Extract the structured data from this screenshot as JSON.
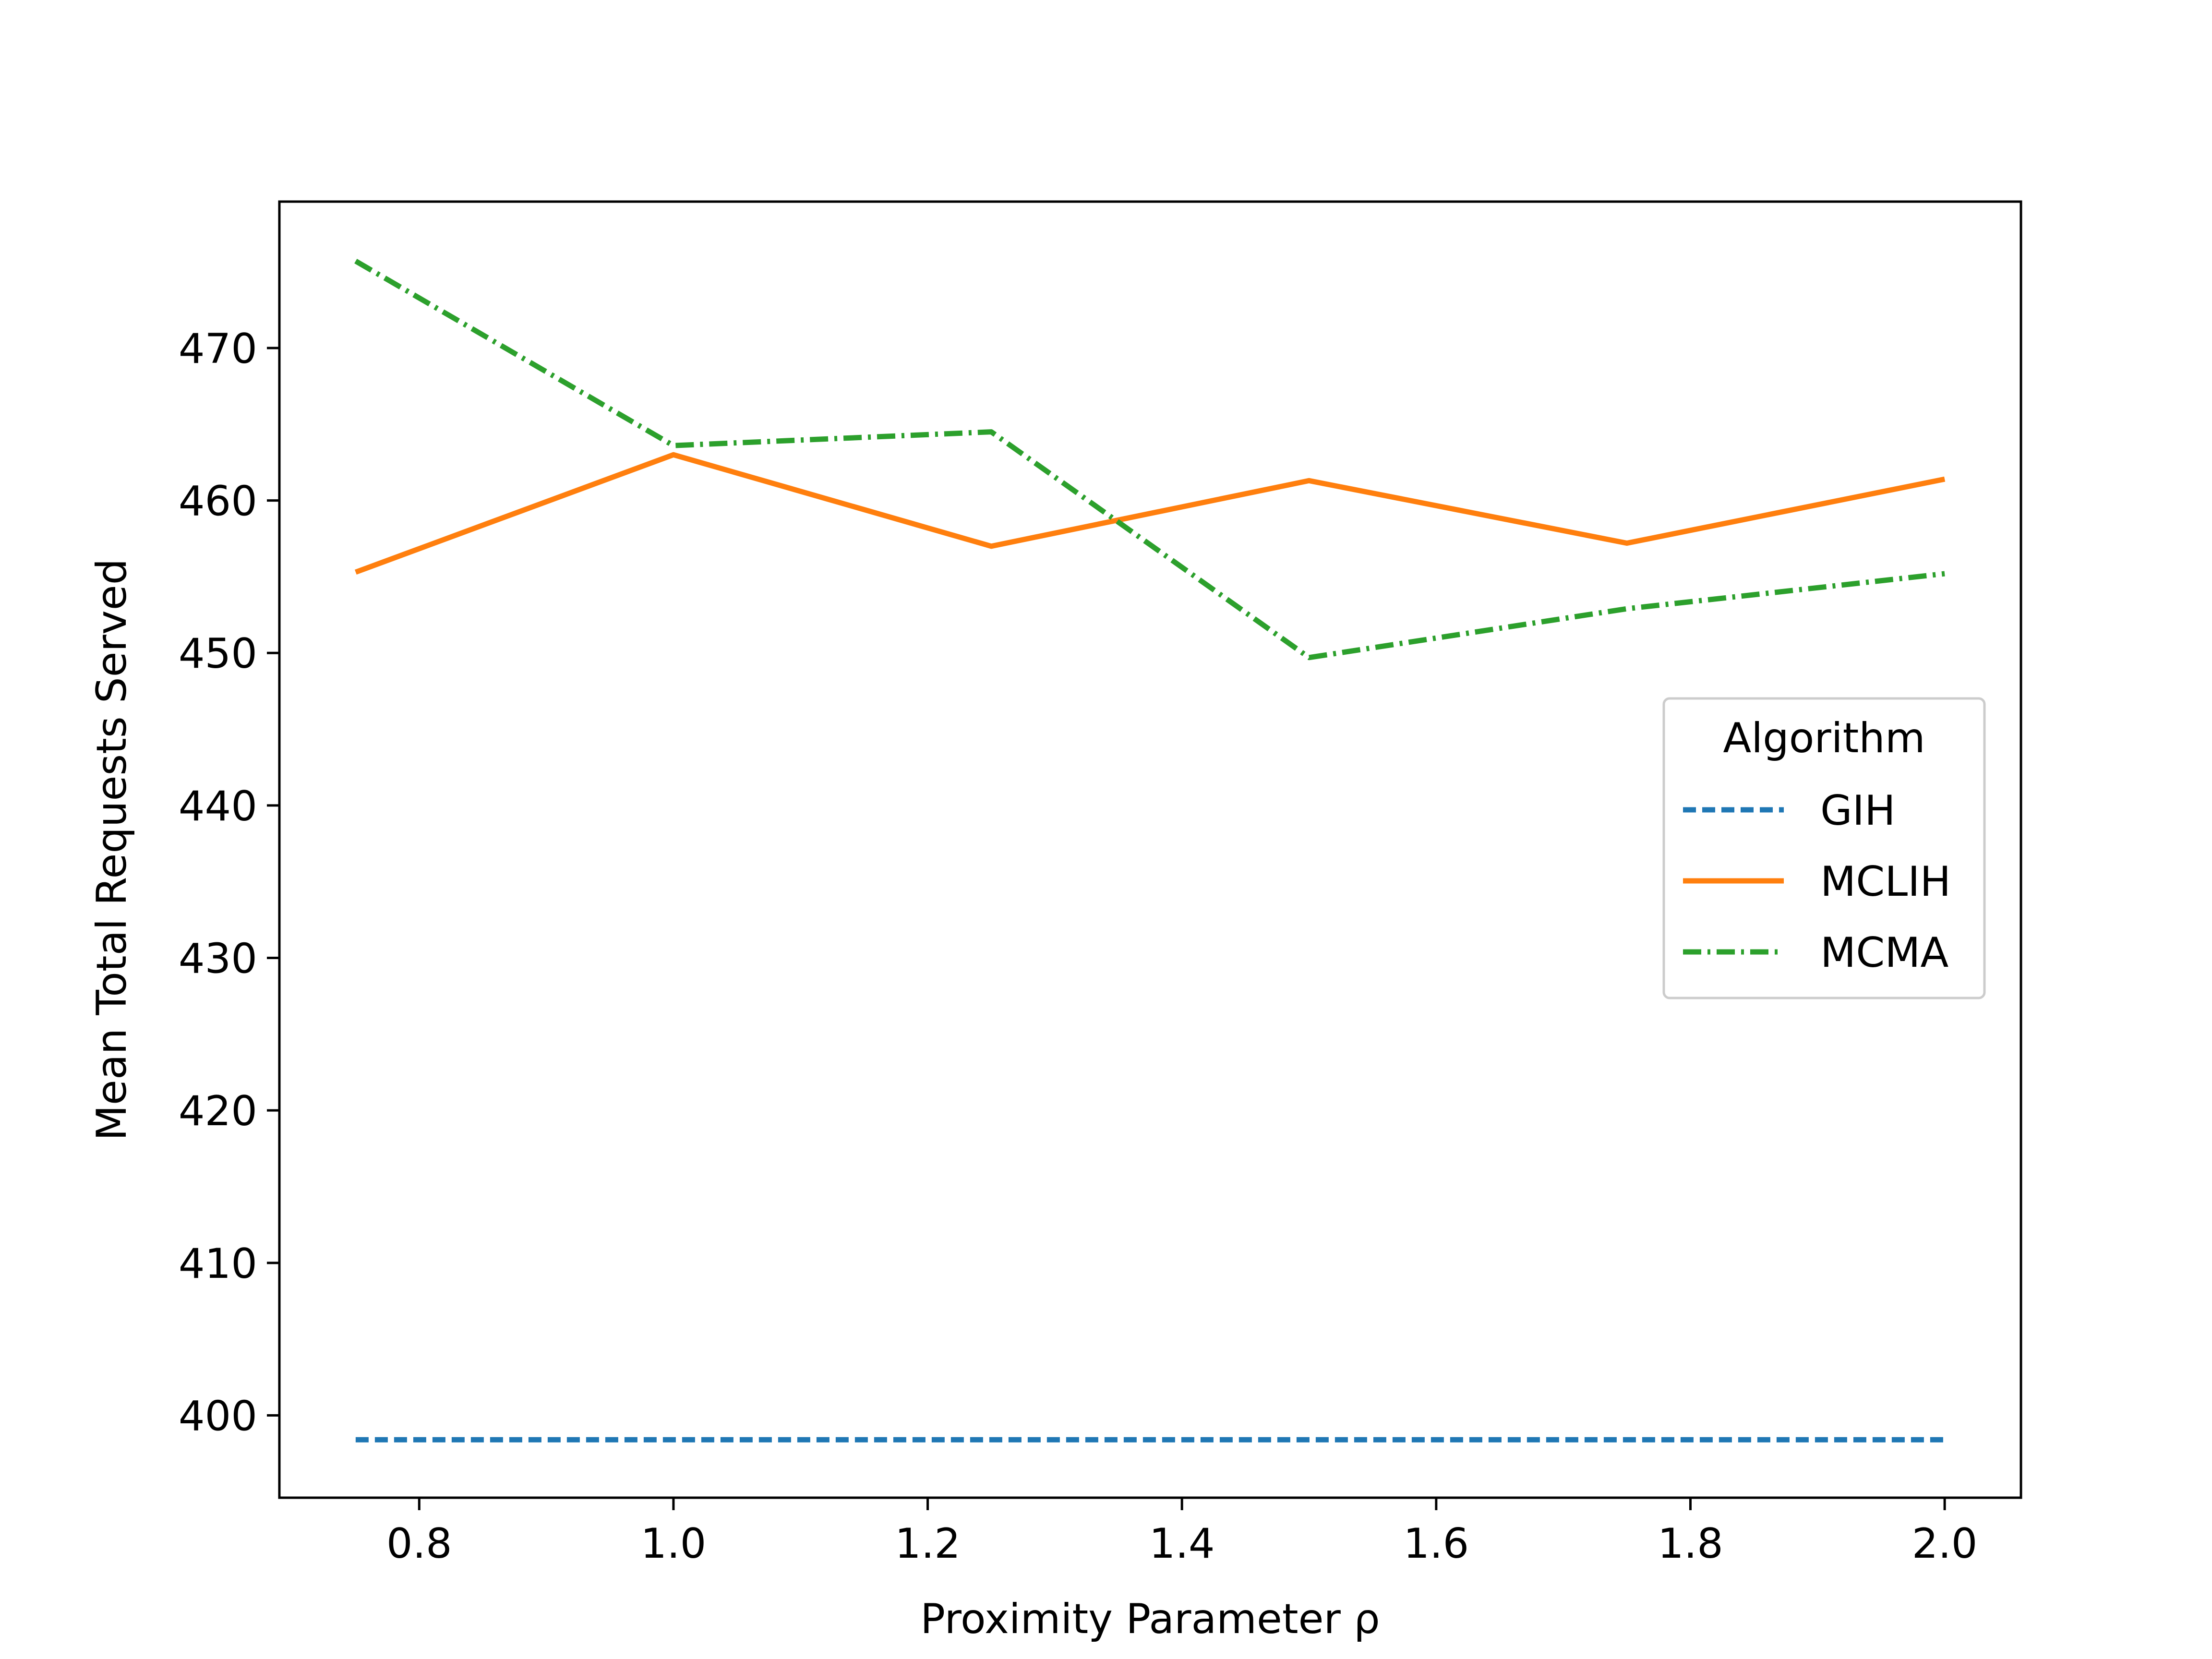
{
  "chart_data": {
    "type": "line",
    "title": "",
    "xlabel": "Proximity Parameter ρ",
    "ylabel": "Mean Total Requests Served",
    "xlim": [
      0.69,
      2.06
    ],
    "ylim": [
      394.6,
      479.6
    ],
    "xticks": [
      0.8,
      1.0,
      1.2,
      1.4,
      1.6,
      1.8,
      2.0
    ],
    "xtick_labels": [
      "0.8",
      "1.0",
      "1.2",
      "1.4",
      "1.6",
      "1.8",
      "2.0"
    ],
    "yticks": [
      400,
      410,
      420,
      430,
      440,
      450,
      460,
      470
    ],
    "ytick_labels": [
      "400",
      "410",
      "420",
      "430",
      "440",
      "450",
      "460",
      "470"
    ],
    "grid": false,
    "legend": {
      "title": "Algorithm",
      "position": "center-right"
    },
    "x": [
      0.75,
      1.0,
      1.25,
      1.5,
      1.75,
      2.0
    ],
    "series": [
      {
        "name": "GIH",
        "values": [
          398.4,
          398.4,
          398.4,
          398.4,
          398.4,
          398.4
        ],
        "color": "#1f77b4",
        "style": "dashed"
      },
      {
        "name": "MCLIH",
        "values": [
          455.3,
          463.0,
          457.0,
          461.3,
          457.2,
          461.4
        ],
        "color": "#ff7f0e",
        "style": "solid"
      },
      {
        "name": "MCMA",
        "values": [
          475.7,
          463.6,
          464.5,
          449.7,
          452.9,
          455.2
        ],
        "color": "#2ca02c",
        "style": "dashdot"
      }
    ]
  }
}
